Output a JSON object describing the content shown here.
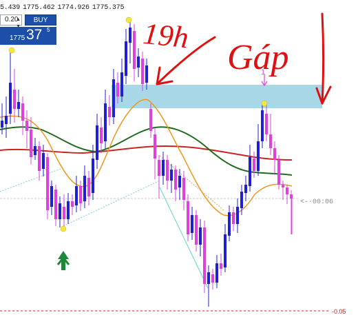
{
  "quote_bar": [
    "5.439",
    "1775.462",
    "1774.926",
    "1775.375"
  ],
  "trade_panel": {
    "lot_value": "0.20",
    "buy_label": "BUY",
    "price_prefix": "1775",
    "price_big": "37",
    "price_small": "5"
  },
  "countdown_label": "<--00:06",
  "bottom_price_fragment": "-0.05",
  "annotations": {
    "time_note": "19h",
    "gap_note": "Gáp",
    "fractal_mark": "1"
  },
  "colors": {
    "bull_candle": "#1f1fd6",
    "bear_candle": "#e040e0",
    "ma_fast": "#f0961e",
    "ma_mid": "#1e6b1e",
    "ma_slow": "#cc2222",
    "gap_zone": "#a8d8e8",
    "annotation_ink": "#e01010",
    "fractal_dot": "#f5e642",
    "up_arrow": "#1a8a3a",
    "buy_panel": "#1b4fa8"
  }
}
